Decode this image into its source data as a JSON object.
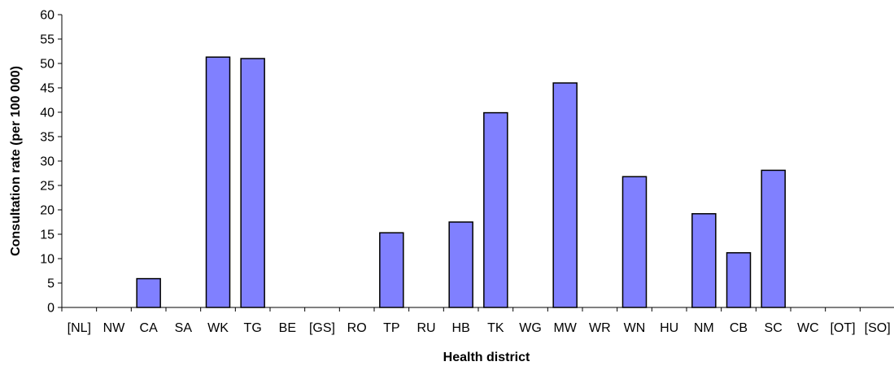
{
  "chart_data": {
    "type": "bar",
    "title": "",
    "xlabel": "Health district",
    "ylabel": "Consultation rate (per 100 000)",
    "ylim": [
      0,
      60
    ],
    "ytick_step": 5,
    "grid": false,
    "legend": "none",
    "bar_color": "#8080ff",
    "categories": [
      "[NL]",
      "NW",
      "CA",
      "SA",
      "WK",
      "TG",
      "BE",
      "[GS]",
      "RO",
      "TP",
      "RU",
      "HB",
      "TK",
      "WG",
      "MW",
      "WR",
      "WN",
      "HU",
      "NM",
      "CB",
      "SC",
      "WC",
      "[OT]",
      "[SO]"
    ],
    "values": [
      0,
      0,
      5.9,
      0,
      51.3,
      51.0,
      0,
      0,
      0,
      15.3,
      0,
      17.5,
      39.9,
      0,
      46.0,
      0,
      26.8,
      0,
      19.2,
      11.2,
      28.1,
      0,
      0,
      0
    ]
  }
}
